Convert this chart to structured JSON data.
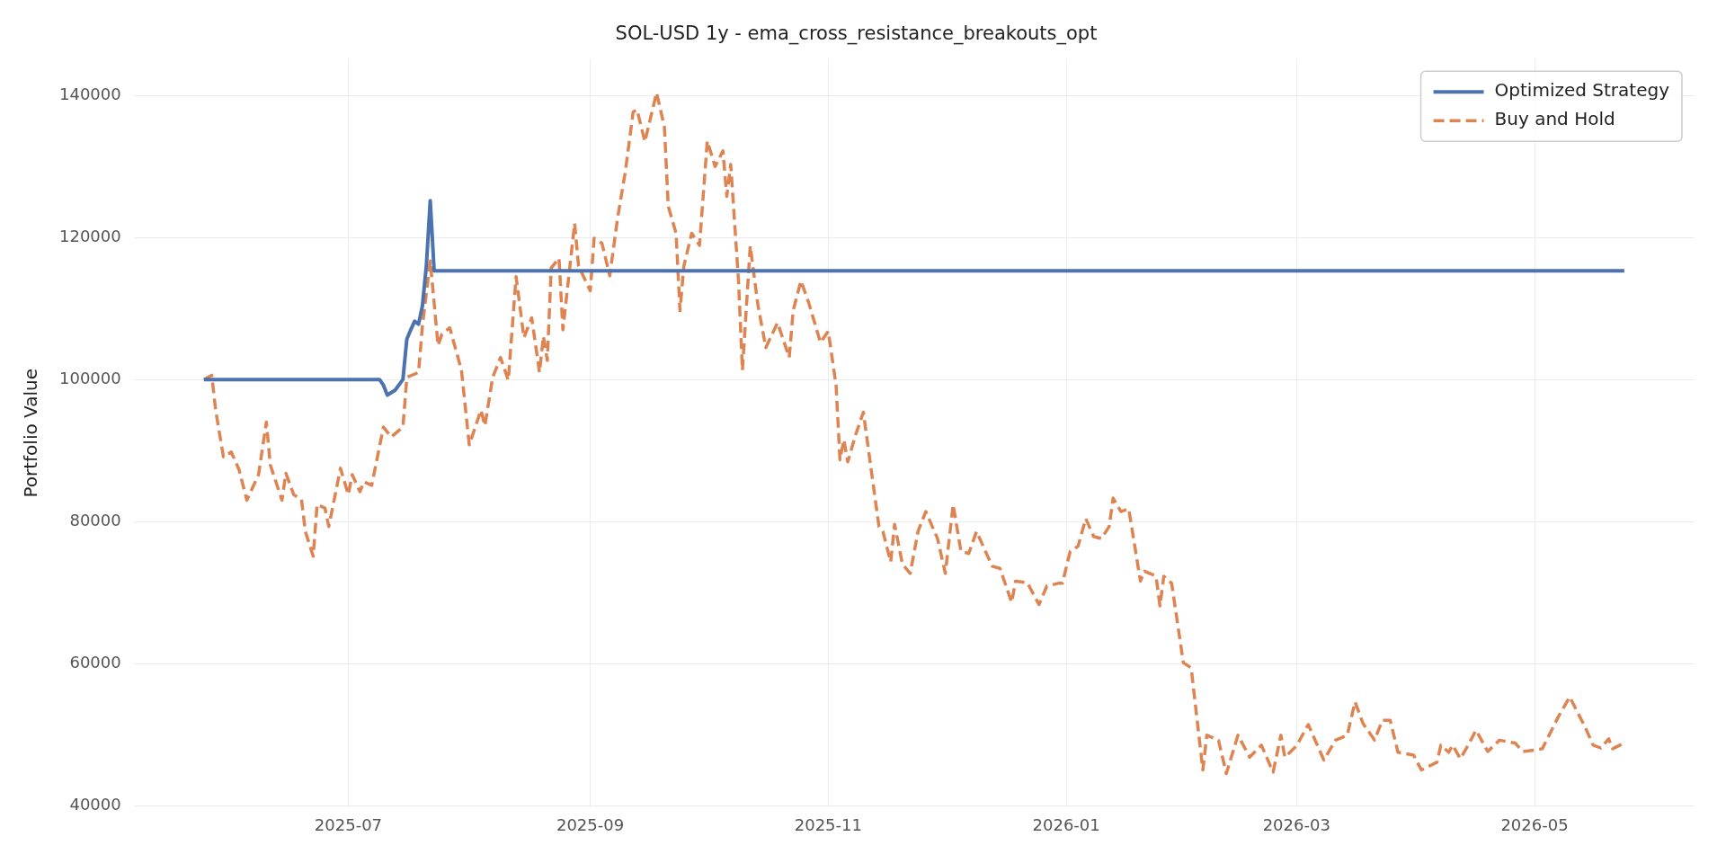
{
  "chart_data": {
    "type": "line",
    "title": "SOL-USD 1y - ema_cross_resistance_breakouts_opt",
    "ylabel": "Portfolio Value",
    "xlim": [
      "2025-05-07",
      "2026-06-11"
    ],
    "xticks": [
      "2025-07",
      "2025-09",
      "2025-11",
      "2026-01",
      "2026-03",
      "2026-05"
    ],
    "ylim": [
      39700,
      145200
    ],
    "yticks": [
      40000,
      60000,
      80000,
      100000,
      120000,
      140000
    ],
    "grid": true,
    "legend": "top right",
    "marker": "none",
    "series": [
      {
        "name": "Optimized Strategy",
        "color": "#4c72b0",
        "line_style": "solid",
        "x": [
          "2025-05-25",
          "2025-07-09",
          "2025-07-10",
          "2025-07-11",
          "2025-07-13",
          "2025-07-15",
          "2025-07-16",
          "2025-07-17",
          "2025-07-18",
          "2025-07-19",
          "2025-07-20",
          "2025-07-21",
          "2025-07-22",
          "2025-07-23",
          "2026-05-24"
        ],
        "values": [
          100000,
          100000,
          99200,
          97800,
          98500,
          100000,
          105700,
          107000,
          108200,
          107800,
          110400,
          116000,
          125200,
          115300,
          115300
        ]
      },
      {
        "name": "Buy and Hold",
        "color": "#dd8452",
        "line_style": "dashed",
        "x": [
          "2025-05-25",
          "2025-05-27",
          "2025-05-28",
          "2025-05-30",
          "2025-06-01",
          "2025-06-03",
          "2025-06-05",
          "2025-06-08",
          "2025-06-10",
          "2025-06-11",
          "2025-06-14",
          "2025-06-15",
          "2025-06-17",
          "2025-06-19",
          "2025-06-20",
          "2025-06-22",
          "2025-06-23",
          "2025-06-25",
          "2025-06-26",
          "2025-06-29",
          "2025-07-01",
          "2025-07-02",
          "2025-07-04",
          "2025-07-05",
          "2025-07-07",
          "2025-07-10",
          "2025-07-12",
          "2025-07-15",
          "2025-07-16",
          "2025-07-19",
          "2025-07-20",
          "2025-07-22",
          "2025-07-24",
          "2025-07-25",
          "2025-07-27",
          "2025-07-30",
          "2025-08-01",
          "2025-08-04",
          "2025-08-05",
          "2025-08-07",
          "2025-08-09",
          "2025-08-11",
          "2025-08-13",
          "2025-08-15",
          "2025-08-17",
          "2025-08-19",
          "2025-08-20",
          "2025-08-21",
          "2025-08-22",
          "2025-08-24",
          "2025-08-25",
          "2025-08-28",
          "2025-08-29",
          "2025-09-01",
          "2025-09-02",
          "2025-09-04",
          "2025-09-06",
          "2025-09-08",
          "2025-09-10",
          "2025-09-12",
          "2025-09-13",
          "2025-09-15",
          "2025-09-18",
          "2025-09-20",
          "2025-09-21",
          "2025-09-23",
          "2025-09-24",
          "2025-09-25",
          "2025-09-27",
          "2025-09-29",
          "2025-10-01",
          "2025-10-03",
          "2025-10-05",
          "2025-10-06",
          "2025-10-07",
          "2025-10-09",
          "2025-10-10",
          "2025-10-12",
          "2025-10-14",
          "2025-10-16",
          "2025-10-19",
          "2025-10-22",
          "2025-10-23",
          "2025-10-25",
          "2025-10-27",
          "2025-10-30",
          "2025-11-01",
          "2025-11-03",
          "2025-11-04",
          "2025-11-05",
          "2025-11-06",
          "2025-11-08",
          "2025-11-10",
          "2025-11-12",
          "2025-11-14",
          "2025-11-15",
          "2025-11-17",
          "2025-11-18",
          "2025-11-20",
          "2025-11-22",
          "2025-11-24",
          "2025-11-26",
          "2025-11-29",
          "2025-12-01",
          "2025-12-03",
          "2025-12-05",
          "2025-12-07",
          "2025-12-09",
          "2025-12-13",
          "2025-12-15",
          "2025-12-18",
          "2025-12-19",
          "2025-12-22",
          "2025-12-25",
          "2025-12-27",
          "2025-12-30",
          "2025-12-31",
          "2026-01-02",
          "2026-01-04",
          "2026-01-06",
          "2026-01-08",
          "2026-01-10",
          "2026-01-12",
          "2026-01-13",
          "2026-01-15",
          "2026-01-17",
          "2026-01-20",
          "2026-01-21",
          "2026-01-24",
          "2026-01-25",
          "2026-01-26",
          "2026-01-28",
          "2026-01-31",
          "2026-02-02",
          "2026-02-05",
          "2026-02-06",
          "2026-02-09",
          "2026-02-11",
          "2026-02-14",
          "2026-02-17",
          "2026-02-20",
          "2026-02-23",
          "2026-02-25",
          "2026-02-26",
          "2026-03-01",
          "2026-03-04",
          "2026-03-08",
          "2026-03-11",
          "2026-03-14",
          "2026-03-16",
          "2026-03-18",
          "2026-03-21",
          "2026-03-23",
          "2026-03-25",
          "2026-03-27",
          "2026-03-31",
          "2026-04-02",
          "2026-04-06",
          "2026-04-07",
          "2026-04-09",
          "2026-04-10",
          "2026-04-12",
          "2026-04-14",
          "2026-04-16",
          "2026-04-19",
          "2026-04-22",
          "2026-04-26",
          "2026-04-28",
          "2026-05-01",
          "2026-05-03",
          "2026-05-07",
          "2026-05-10",
          "2026-05-14",
          "2026-05-16",
          "2026-05-18",
          "2026-05-20",
          "2026-05-21",
          "2026-05-24"
        ],
        "values": [
          100000,
          100600,
          95700,
          89100,
          89800,
          87300,
          83000,
          86600,
          94000,
          88000,
          83000,
          86800,
          83800,
          83100,
          78600,
          75100,
          82400,
          81900,
          79300,
          87500,
          83800,
          86600,
          84200,
          85600,
          85100,
          93300,
          91900,
          93300,
          100300,
          101000,
          107600,
          116700,
          104800,
          106400,
          107300,
          101300,
          90800,
          95700,
          93500,
          100300,
          103100,
          99900,
          114500,
          105900,
          108700,
          101000,
          106100,
          102700,
          115700,
          117100,
          107000,
          122000,
          116000,
          112500,
          119900,
          119200,
          114600,
          122700,
          129300,
          137700,
          138000,
          133500,
          140400,
          135600,
          124400,
          120600,
          109700,
          116000,
          120600,
          118900,
          133600,
          130000,
          132200,
          125800,
          130300,
          113900,
          101300,
          118800,
          110400,
          104500,
          108000,
          103100,
          109700,
          113900,
          110800,
          105200,
          106800,
          99200,
          88700,
          91500,
          88400,
          92200,
          95400,
          87300,
          79300,
          78600,
          74300,
          79600,
          74000,
          72700,
          78600,
          81400,
          77600,
          72700,
          82400,
          75800,
          75500,
          78600,
          73700,
          73400,
          68600,
          71600,
          71400,
          68300,
          70900,
          71300,
          71300,
          75800,
          76500,
          80400,
          77900,
          77600,
          79300,
          83300,
          81400,
          81800,
          71600,
          73000,
          72300,
          68100,
          72300,
          71300,
          60100,
          59400,
          45000,
          49900,
          49200,
          44500,
          49900,
          46800,
          48500,
          44700,
          49900,
          46800,
          48400,
          51400,
          46400,
          49200,
          49900,
          54600,
          51600,
          49200,
          52000,
          52000,
          47500,
          47100,
          45000,
          46100,
          48500,
          47500,
          48500,
          46600,
          48500,
          50600,
          47600,
          49200,
          48800,
          47600,
          47800,
          48000,
          52400,
          55300,
          51000,
          48500,
          48100,
          49400,
          48000,
          48800
        ]
      }
    ]
  }
}
